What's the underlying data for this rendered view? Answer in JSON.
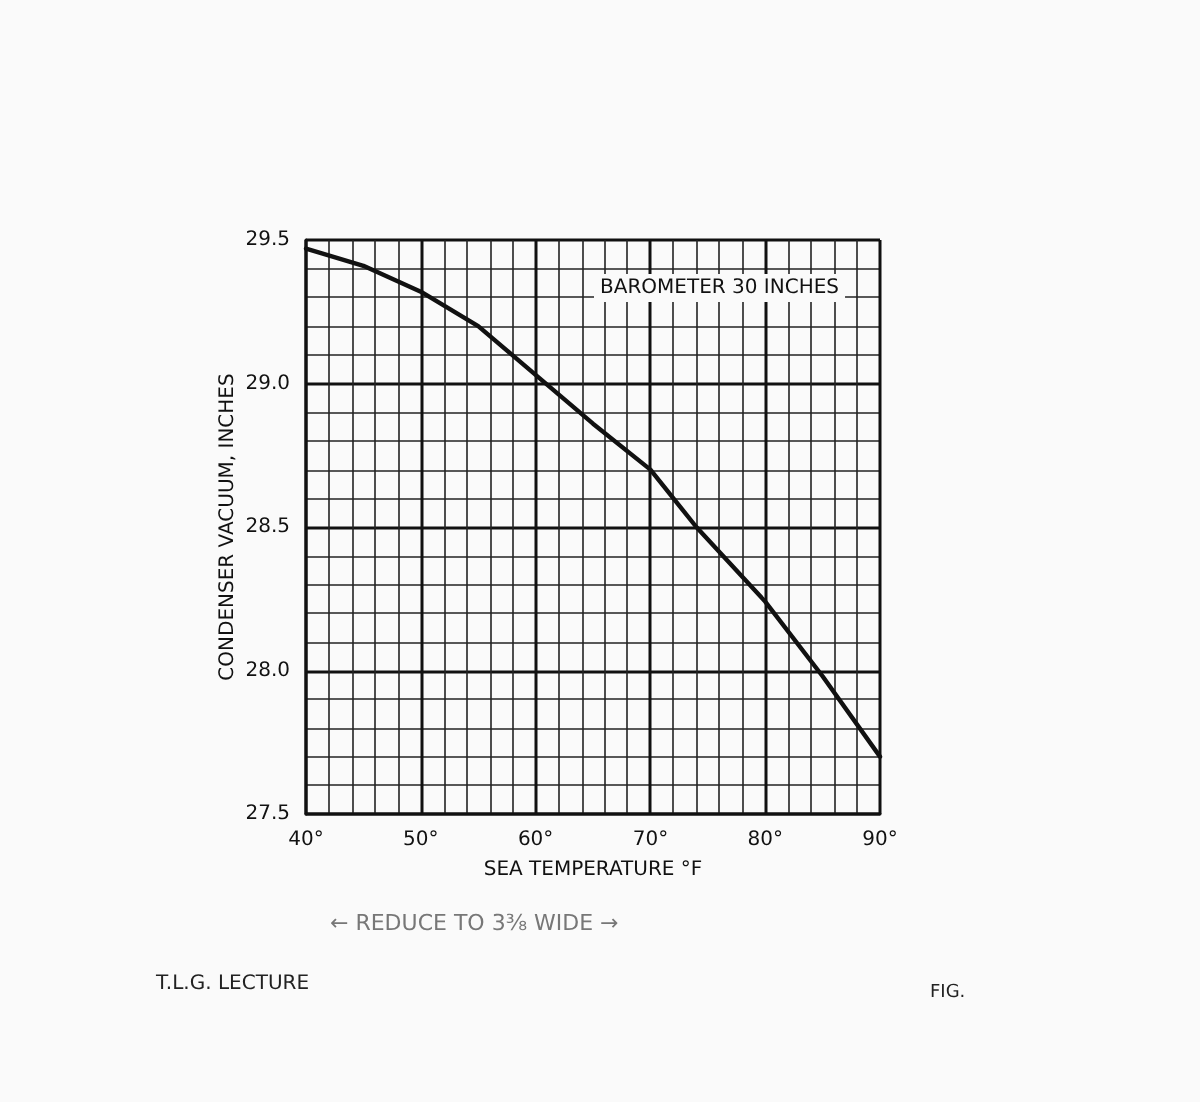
{
  "chart_data": {
    "type": "line",
    "xlabel": "SEA TEMPERATURE °F",
    "ylabel": "CONDENSER VACUUM, INCHES",
    "annotations": [
      "BAROMETER 30 INCHES",
      "← REDUCE TO 3⅜ WIDE →",
      "T.L.G. LECTURE",
      "FIG."
    ],
    "x": [
      40,
      45,
      50,
      55,
      60,
      65,
      70,
      74,
      80,
      85,
      90
    ],
    "series": [
      {
        "color": "#111111",
        "values": [
          29.47,
          29.41,
          29.32,
          29.2,
          29.03,
          28.86,
          28.7,
          28.5,
          28.24,
          27.98,
          27.7
        ]
      }
    ],
    "xlim": [
      40,
      90
    ],
    "xticks": [
      {
        "value": 40,
        "label": "40°"
      },
      {
        "value": 50,
        "label": "50°"
      },
      {
        "value": 60,
        "label": "60°"
      },
      {
        "value": 70,
        "label": "70°"
      },
      {
        "value": 80,
        "label": "80°"
      },
      {
        "value": 90,
        "label": "90°"
      }
    ],
    "ylim": [
      27.5,
      29.5
    ],
    "yticks": [
      {
        "value": 27.5,
        "label": "27.5"
      },
      {
        "value": 28,
        "label": "28.0"
      },
      {
        "value": 28.5,
        "label": "28.5"
      },
      {
        "value": 29,
        "label": "29.0"
      },
      {
        "value": 29.5,
        "label": "29.5"
      }
    ],
    "grid": true,
    "marker": "none",
    "line_style": "solid"
  }
}
